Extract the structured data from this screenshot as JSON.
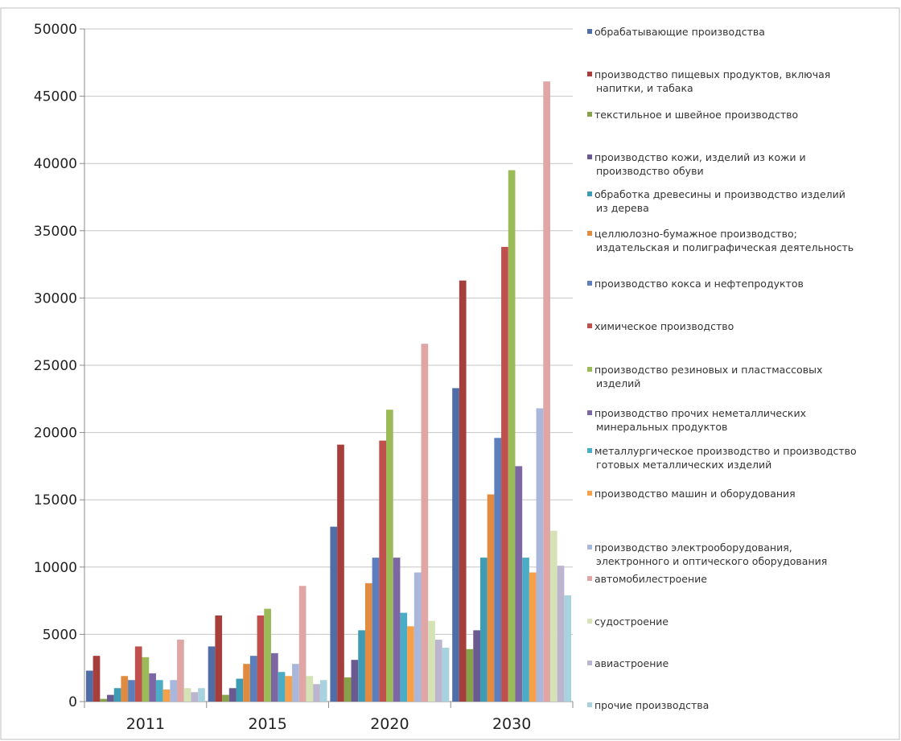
{
  "chart_data": {
    "type": "bar",
    "title": "",
    "xlabel": "",
    "ylabel": "",
    "ylim": [
      0,
      50000
    ],
    "yticks": [
      0,
      5000,
      10000,
      15000,
      20000,
      25000,
      30000,
      35000,
      40000,
      45000,
      50000
    ],
    "grid": "horizontal",
    "legend_position": "right",
    "categories": [
      "2011",
      "2015",
      "2020",
      "2030"
    ],
    "series": [
      {
        "name": "обрабатывающие производства",
        "color": "#4f6ea8",
        "values": [
          2300,
          4100,
          13000,
          23300
        ]
      },
      {
        "name": "производство пищевых продуктов, включая напитки, и табака",
        "color": "#a63f3c",
        "values": [
          3400,
          6400,
          19100,
          31300
        ]
      },
      {
        "name": "текстильное и швейное производство",
        "color": "#87a24b",
        "values": [
          200,
          500,
          1800,
          3900
        ]
      },
      {
        "name": "производство кожи, изделий из кожи и производство обуви",
        "color": "#6b5a90",
        "values": [
          500,
          1000,
          3100,
          5300
        ]
      },
      {
        "name": "обработка древесины и производство изделий из дерева",
        "color": "#3d9bb3",
        "values": [
          1000,
          1700,
          5300,
          10700
        ]
      },
      {
        "name": "целлюлозно-бумажное производство; издательская и полиграфическая деятельность",
        "color": "#e08b3f",
        "values": [
          1900,
          2800,
          8800,
          15400
        ]
      },
      {
        "name": "производство кокса и нефтепродуктов",
        "color": "#5b7fbd",
        "values": [
          1600,
          3400,
          10700,
          19600
        ]
      },
      {
        "name": "химическое производство",
        "color": "#c0504d",
        "values": [
          4100,
          6400,
          19400,
          33800
        ]
      },
      {
        "name": "производство резиновых и пластмассовых изделий",
        "color": "#9bbb59",
        "values": [
          3300,
          6900,
          21700,
          39500
        ]
      },
      {
        "name": "производство прочих неметаллических минеральных продуктов",
        "color": "#7c66a3",
        "values": [
          2100,
          3600,
          10700,
          17500
        ]
      },
      {
        "name": "металлургическое производство и производство готовых металлических изделий",
        "color": "#4bacc6",
        "values": [
          1600,
          2200,
          6600,
          10700
        ]
      },
      {
        "name": "производство машин и оборудования",
        "color": "#f7a04a",
        "values": [
          900,
          1900,
          5600,
          9600
        ]
      },
      {
        "name": "производство электрооборудования, электронного и оптического оборудования",
        "color": "#a9b7dc",
        "values": [
          1600,
          2800,
          9600,
          21800
        ]
      },
      {
        "name": "автомобилестроение",
        "color": "#dfa6a5",
        "values": [
          4600,
          8600,
          26600,
          46100
        ]
      },
      {
        "name": "судостроение",
        "color": "#d5e2b5",
        "values": [
          1000,
          1900,
          6000,
          12700
        ]
      },
      {
        "name": "авиастроение",
        "color": "#bdb5cf",
        "values": [
          700,
          1300,
          4600,
          10100
        ]
      },
      {
        "name": "прочие производства",
        "color": "#a9d2df",
        "values": [
          1000,
          1600,
          4000,
          7900
        ]
      }
    ],
    "legend_lines": [
      [
        "обрабатывающие производства"
      ],
      [
        "производство пищевых продуктов, включая",
        "напитки, и табака"
      ],
      [
        "текстильное и швейное производство"
      ],
      [
        "производство кожи, изделий из кожи и",
        "производство обуви"
      ],
      [
        "обработка древесины и производство изделий",
        "из дерева"
      ],
      [
        "целлюлозно-бумажное производство;",
        "издательская и полиграфическая деятельность"
      ],
      [
        "производство кокса и нефтепродуктов"
      ],
      [
        "химическое производство"
      ],
      [
        "производство резиновых и пластмассовых",
        "изделий"
      ],
      [
        "производство прочих неметаллических",
        "минеральных продуктов"
      ],
      [
        "металлургическое производство и производство",
        "готовых металлических изделий"
      ],
      [
        "производство машин и оборудования"
      ],
      [
        "производство электрооборудования,",
        "электронного и оптического оборудования"
      ],
      [
        "автомобилестроение"
      ],
      [
        "судостроение"
      ],
      [
        "авиастроение"
      ],
      [
        "прочие производства"
      ]
    ]
  }
}
